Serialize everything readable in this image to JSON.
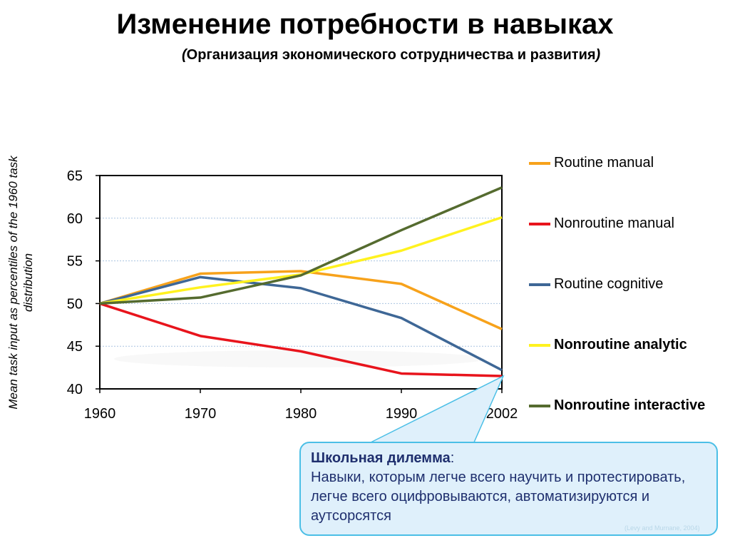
{
  "title": "Изменение потребности в навыках",
  "subtitle": {
    "open": "(",
    "text": "Организация экономического сотрудничества и развития",
    "close": ")"
  },
  "callout": {
    "heading": "Школьная дилемма",
    "colon": ":",
    "body": "Навыки, которым легче всего научить и протестировать, легче всего оцифровываются, автоматизируются и аутсорсятся"
  },
  "footnote": "(Levy and Murnane, 2004)",
  "colors": {
    "routine_manual": "#f7a21b",
    "nonroutine_manual": "#e8141c",
    "routine_cognitive": "#3e6796",
    "nonroutine_analytic": "#fff21f",
    "nonroutine_interactive": "#556b2f",
    "callout_border": "#4bbfe6",
    "callout_bg": "#dff0fb",
    "callout_text": "#1f2f6e"
  },
  "chart_data": {
    "type": "line",
    "title": "",
    "xlabel": "",
    "ylabel": "Mean task input as percentiles of  the 1960 task distribution",
    "x": [
      1960,
      1970,
      1980,
      1990,
      2002
    ],
    "x_tick_labels": [
      "1960",
      "1970",
      "1980",
      "1990",
      "2002"
    ],
    "ylim": [
      40,
      65
    ],
    "y_ticks": [
      40,
      45,
      50,
      55,
      60,
      65
    ],
    "grid": true,
    "legend_position": "right",
    "series": [
      {
        "name": "Routine manual",
        "color_key": "routine_manual",
        "bold": false,
        "values": [
          50.0,
          53.5,
          53.8,
          52.3,
          47.0
        ]
      },
      {
        "name": "Nonroutine manual",
        "color_key": "nonroutine_manual",
        "bold": false,
        "values": [
          50.0,
          46.2,
          44.4,
          41.8,
          41.5
        ]
      },
      {
        "name": "Routine cognitive",
        "color_key": "routine_cognitive",
        "bold": false,
        "values": [
          50.0,
          53.1,
          51.8,
          48.3,
          42.2
        ]
      },
      {
        "name": "Nonroutine analytic",
        "color_key": "nonroutine_analytic",
        "bold": true,
        "values": [
          50.0,
          51.9,
          53.4,
          56.2,
          60.1
        ]
      },
      {
        "name": "Nonroutine interactive",
        "color_key": "nonroutine_interactive",
        "bold": true,
        "values": [
          50.0,
          50.7,
          53.3,
          58.6,
          63.6
        ]
      }
    ]
  }
}
